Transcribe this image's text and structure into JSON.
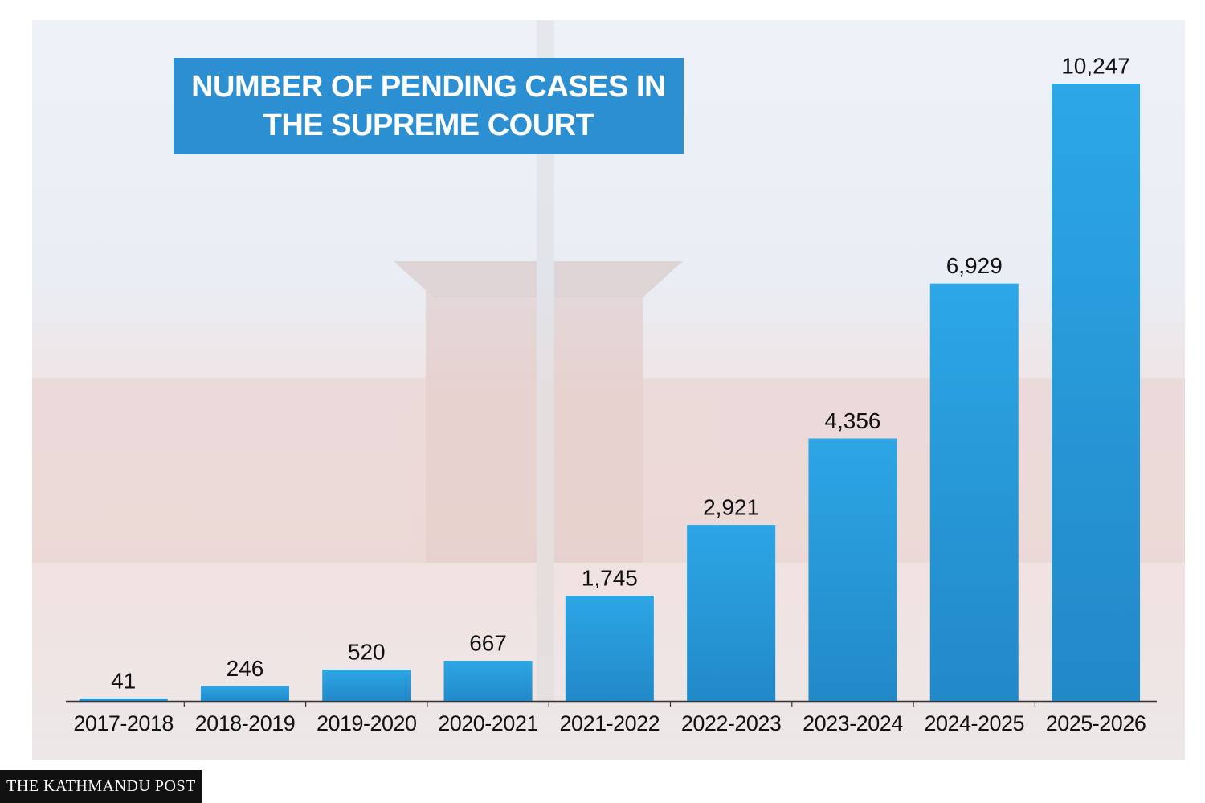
{
  "chart_data": {
    "type": "bar",
    "title": "NUMBER OF PENDING CASES IN THE SUPREME COURT",
    "categories": [
      "2017-2018",
      "2018-2019",
      "2019-2020",
      "2020-2021",
      "2021-2022",
      "2022-2023",
      "2023-2024",
      "2024-2025",
      "2025-2026"
    ],
    "values": [
      41,
      246,
      520,
      667,
      1745,
      2921,
      4356,
      6929,
      10247
    ],
    "value_labels": [
      "41",
      "246",
      "520",
      "667",
      "1,745",
      "2,921",
      "4,356",
      "6,929",
      "10,247"
    ],
    "color": "#1c97d8",
    "source": "THE KATHMANDU POST"
  }
}
